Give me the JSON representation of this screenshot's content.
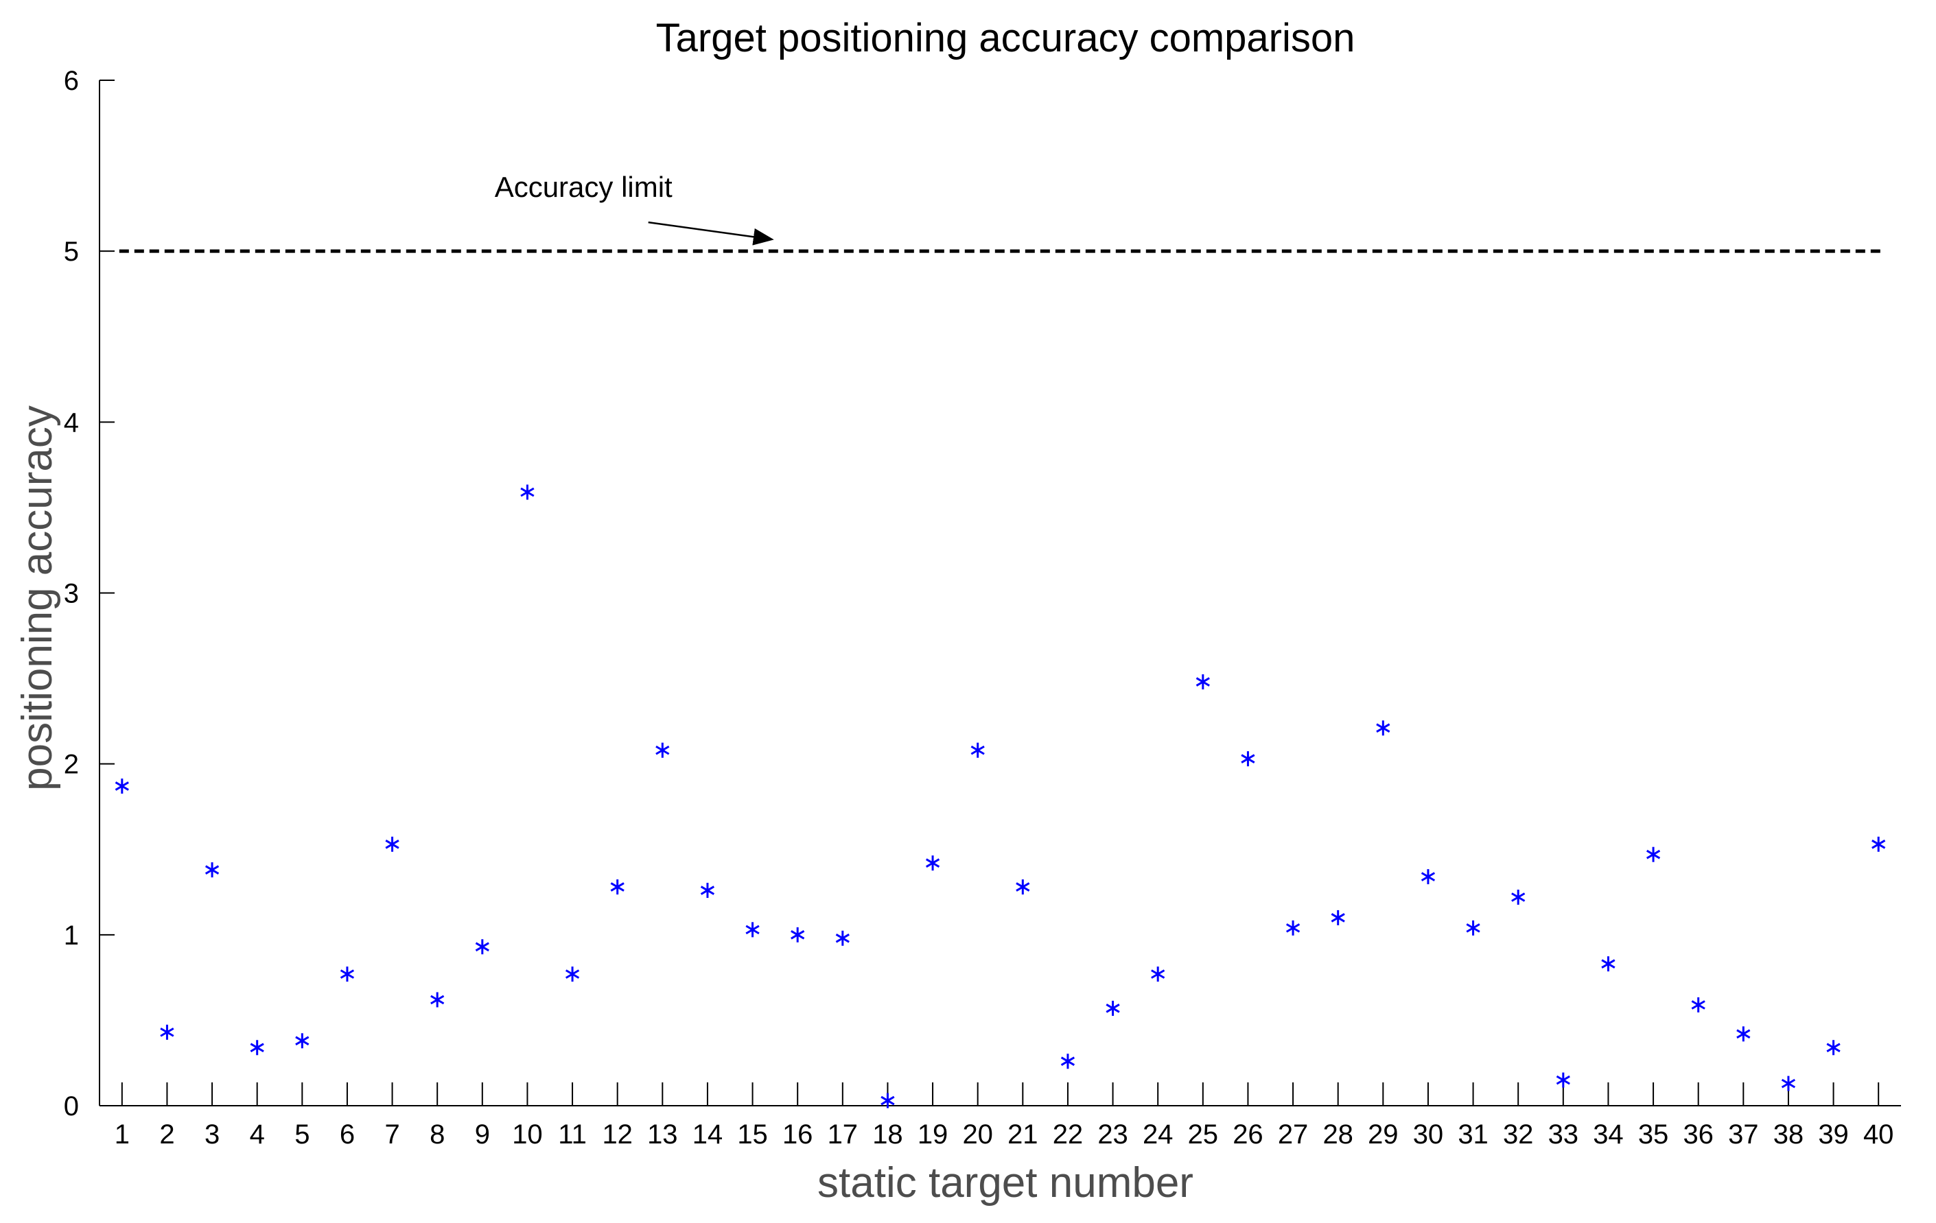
{
  "chart_data": {
    "type": "scatter",
    "title": "Target positioning accuracy comparison",
    "xlabel": "static target number",
    "ylabel": "positioning accuracy",
    "xlim": [
      0.5,
      40.5
    ],
    "ylim": [
      0,
      6
    ],
    "xticks": [
      1,
      2,
      3,
      4,
      5,
      6,
      7,
      8,
      9,
      10,
      11,
      12,
      13,
      14,
      15,
      16,
      17,
      18,
      19,
      20,
      21,
      22,
      23,
      24,
      25,
      26,
      27,
      28,
      29,
      30,
      31,
      32,
      33,
      34,
      35,
      36,
      37,
      38,
      39,
      40
    ],
    "xtick_labels": [
      "1",
      "2",
      "3",
      "4",
      "5",
      "6",
      "7",
      "8",
      "9",
      "10",
      "11",
      "12",
      "13",
      "14",
      "15",
      "16",
      "17",
      "18",
      "19",
      "20",
      "21",
      "22",
      "23",
      "24",
      "25",
      "26",
      "27",
      "28",
      "29",
      "30",
      "31",
      "32",
      "33",
      "34",
      "35",
      "36",
      "37",
      "38",
      "39",
      "40"
    ],
    "yticks": [
      0,
      1,
      2,
      3,
      4,
      5,
      6
    ],
    "ytick_labels": [
      "0",
      "1",
      "2",
      "3",
      "4",
      "5",
      "6"
    ],
    "grid": false,
    "marker": "asterisk",
    "marker_color": "#0000ff",
    "series": [
      {
        "x": [
          1,
          2,
          3,
          4,
          5,
          6,
          7,
          8,
          9,
          10,
          11,
          12,
          13,
          14,
          15,
          16,
          17,
          18,
          19,
          20,
          21,
          22,
          23,
          24,
          25,
          26,
          27,
          28,
          29,
          30,
          31,
          32,
          33,
          34,
          35,
          36,
          37,
          38,
          39,
          40
        ],
        "y": [
          1.87,
          0.43,
          1.38,
          0.34,
          0.38,
          0.77,
          1.53,
          0.62,
          0.93,
          3.59,
          0.77,
          1.28,
          2.08,
          1.26,
          1.03,
          1.0,
          0.98,
          0.03,
          1.42,
          2.08,
          1.28,
          0.26,
          0.57,
          0.77,
          2.48,
          2.03,
          1.04,
          1.1,
          2.21,
          1.34,
          1.04,
          1.22,
          0.15,
          0.83,
          1.47,
          0.59,
          0.42,
          0.13,
          0.34,
          1.53
        ]
      }
    ],
    "reference_line": {
      "y": 5,
      "style": "dashed",
      "color": "#000000"
    },
    "annotations": [
      {
        "text": "Accuracy limit",
        "arrow_target_x": 15.4,
        "arrow_target_y": 5.07,
        "text_x": 10.4,
        "text_y": 5.55
      }
    ]
  }
}
